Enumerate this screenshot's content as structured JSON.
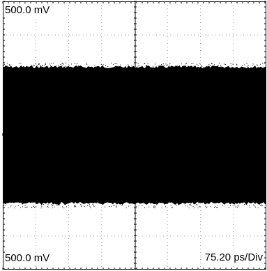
{
  "scope": {
    "scale_top_left": "500.0 mV",
    "scale_bottom_left": "500.0 mV",
    "timebase": "75.20 ps/Div",
    "divisions": {
      "horizontal": 2,
      "vertical": 2
    },
    "colors": {
      "background": "#ffffff",
      "trace": "#000000",
      "grid_frame": "#000000",
      "grid_dots": "#9a9a9a"
    }
  }
}
